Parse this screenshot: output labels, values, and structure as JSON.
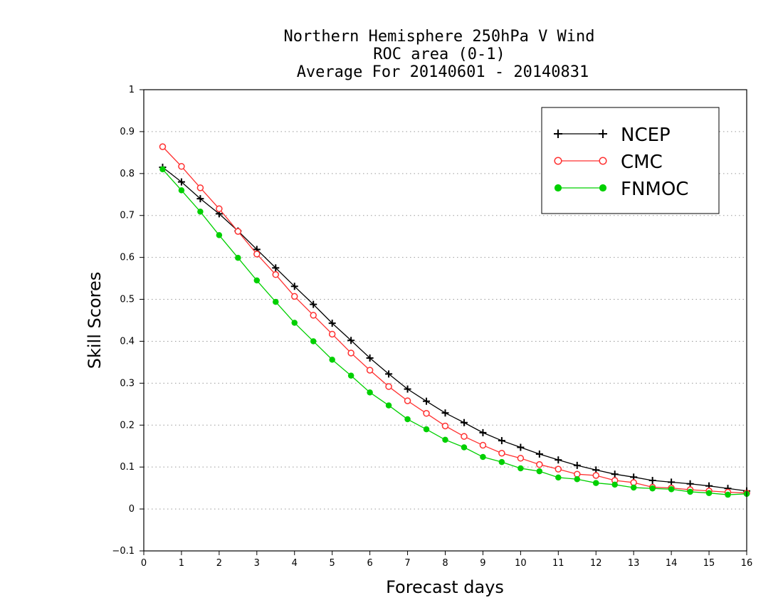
{
  "chart_data": {
    "type": "line",
    "title": [
      "Northern Hemisphere 250hPa V Wind",
      "ROC area (0-1)",
      "Average For 20140601 - 20140831"
    ],
    "xlabel": "Forecast days",
    "ylabel": "Skill Scores",
    "xlim": [
      0,
      16
    ],
    "ylim": [
      -0.1,
      1
    ],
    "xticks": [
      0,
      1,
      2,
      3,
      4,
      5,
      6,
      7,
      8,
      9,
      10,
      11,
      12,
      13,
      14,
      15,
      16
    ],
    "yticks": [
      -0.1,
      0,
      0.1,
      0.2,
      0.3,
      0.4,
      0.5,
      0.6,
      0.7,
      0.8,
      0.9,
      1
    ],
    "ytick_labels": [
      "−0.1",
      "0",
      "0.1",
      "0.2",
      "0.3",
      "0.4",
      "0.5",
      "0.6",
      "0.7",
      "0.8",
      "0.9",
      "1"
    ],
    "grid": "horizontal-dotted",
    "legend_position": "top-right",
    "x": [
      0.5,
      1,
      1.5,
      2,
      2.5,
      3,
      3.5,
      4,
      4.5,
      5,
      5.5,
      6,
      6.5,
      7,
      7.5,
      8,
      8.5,
      9,
      9.5,
      10,
      10.5,
      11,
      11.5,
      12,
      12.5,
      13,
      13.5,
      14,
      14.5,
      15,
      15.5,
      16
    ],
    "series": [
      {
        "name": "NCEP",
        "color": "#000000",
        "marker": "plus",
        "values": [
          0.815,
          0.78,
          0.74,
          0.704,
          0.663,
          0.619,
          0.575,
          0.531,
          0.488,
          0.443,
          0.402,
          0.36,
          0.322,
          0.286,
          0.257,
          0.229,
          0.206,
          0.182,
          0.163,
          0.147,
          0.131,
          0.117,
          0.104,
          0.093,
          0.083,
          0.076,
          0.068,
          0.064,
          0.06,
          0.055,
          0.049,
          0.043
        ]
      },
      {
        "name": "CMC",
        "color": "#ff3030",
        "marker": "open-circle",
        "values": [
          0.864,
          0.817,
          0.766,
          0.716,
          0.662,
          0.608,
          0.559,
          0.507,
          0.462,
          0.417,
          0.372,
          0.331,
          0.292,
          0.258,
          0.228,
          0.198,
          0.173,
          0.152,
          0.133,
          0.121,
          0.106,
          0.095,
          0.083,
          0.08,
          0.068,
          0.063,
          0.052,
          0.05,
          0.046,
          0.043,
          0.04,
          0.038
        ]
      },
      {
        "name": "FNMOC",
        "color": "#00d000",
        "marker": "filled-circle",
        "values": [
          0.81,
          0.76,
          0.709,
          0.653,
          0.599,
          0.545,
          0.494,
          0.444,
          0.4,
          0.356,
          0.318,
          0.278,
          0.247,
          0.214,
          0.19,
          0.165,
          0.147,
          0.124,
          0.112,
          0.097,
          0.09,
          0.075,
          0.071,
          0.062,
          0.058,
          0.051,
          0.049,
          0.047,
          0.041,
          0.038,
          0.034,
          0.036
        ]
      }
    ]
  }
}
